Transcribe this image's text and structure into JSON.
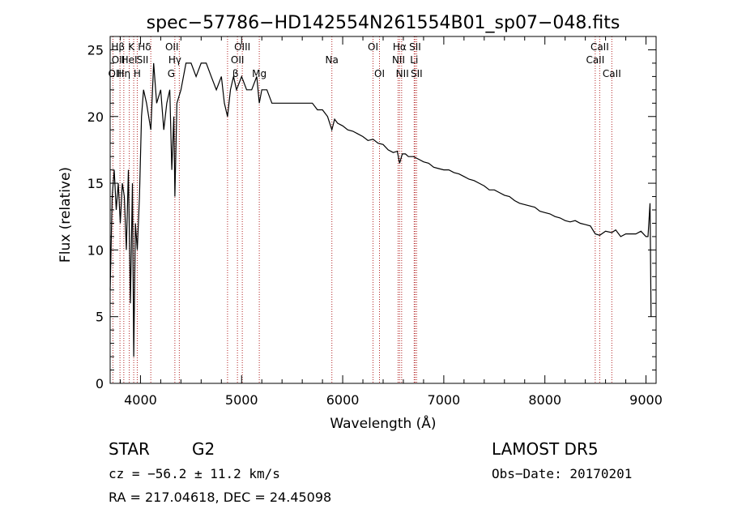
{
  "chart_data": {
    "type": "line",
    "title": "spec−57786−HD142554N261554B01_sp07−048.fits",
    "xlabel": "Wavelength (Å)",
    "ylabel": "Flux (relative)",
    "xlim": [
      3700,
      9100
    ],
    "ylim": [
      0,
      26
    ],
    "xticks": [
      4000,
      5000,
      6000,
      7000,
      8000,
      9000
    ],
    "yticks": [
      0,
      5,
      10,
      15,
      20,
      25
    ],
    "grid": false,
    "series": [
      {
        "color": "#000000",
        "x": [
          3700,
          3720,
          3740,
          3760,
          3780,
          3800,
          3820,
          3840,
          3860,
          3880,
          3900,
          3920,
          3933,
          3950,
          3968,
          3990,
          4010,
          4030,
          4060,
          4102,
          4130,
          4160,
          4200,
          4230,
          4260,
          4290,
          4310,
          4330,
          4340,
          4360,
          4400,
          4450,
          4500,
          4550,
          4600,
          4650,
          4700,
          4750,
          4800,
          4830,
          4861,
          4890,
          4920,
          4950,
          5000,
          5050,
          5100,
          5150,
          5175,
          5200,
          5250,
          5300,
          5350,
          5400,
          5450,
          5500,
          5550,
          5600,
          5650,
          5700,
          5750,
          5800,
          5850,
          5893,
          5920,
          5950,
          6000,
          6050,
          6100,
          6150,
          6200,
          6250,
          6300,
          6350,
          6400,
          6450,
          6500,
          6540,
          6563,
          6590,
          6620,
          6650,
          6700,
          6750,
          6800,
          6850,
          6900,
          6950,
          7000,
          7050,
          7100,
          7150,
          7200,
          7250,
          7300,
          7350,
          7400,
          7450,
          7500,
          7550,
          7600,
          7650,
          7700,
          7750,
          7800,
          7850,
          7900,
          7950,
          8000,
          8050,
          8100,
          8150,
          8200,
          8250,
          8300,
          8350,
          8400,
          8450,
          8498,
          8542,
          8600,
          8662,
          8700,
          8750,
          8800,
          8850,
          8900,
          8950,
          9000,
          9020,
          9040,
          9050
        ],
        "y": [
          7,
          14,
          16,
          13,
          15,
          12,
          15,
          14,
          10,
          16,
          6,
          15,
          2,
          12,
          10,
          14,
          20,
          22,
          21,
          19,
          24,
          21,
          22,
          19,
          21,
          22,
          16,
          20,
          14,
          21,
          22,
          24,
          24,
          23,
          24,
          24,
          23,
          22,
          23,
          21,
          20,
          22,
          23,
          22,
          23,
          22,
          22,
          23,
          21,
          22,
          22,
          21,
          21,
          21,
          21,
          21,
          21,
          21,
          21,
          21,
          20.5,
          20.5,
          20,
          19,
          19.8,
          19.5,
          19.3,
          19,
          18.9,
          18.7,
          18.5,
          18.2,
          18.3,
          18,
          17.9,
          17.5,
          17.3,
          17.4,
          16.5,
          17.2,
          17.2,
          17,
          17,
          16.8,
          16.6,
          16.5,
          16.2,
          16.1,
          16,
          16,
          15.8,
          15.7,
          15.5,
          15.3,
          15.2,
          15,
          14.8,
          14.5,
          14.5,
          14.3,
          14.1,
          14,
          13.7,
          13.5,
          13.4,
          13.3,
          13.2,
          12.9,
          12.8,
          12.7,
          12.5,
          12.4,
          12.2,
          12.1,
          12.2,
          12,
          11.9,
          11.8,
          11.2,
          11.1,
          11.4,
          11.3,
          11.5,
          11,
          11.2,
          11.2,
          11.2,
          11.4,
          11,
          11,
          13.5,
          5
        ]
      }
    ],
    "lines": {
      "positions": [
        3727,
        3797,
        3835,
        3889,
        3933,
        3968,
        4102,
        4340,
        4384,
        4861,
        4959,
        5007,
        5175,
        5893,
        6300,
        6364,
        6548,
        6563,
        6583,
        6707,
        6716,
        6731,
        8498,
        8542,
        8662
      ],
      "labels": [
        {
          "text": "Hβ",
          "x": 3778,
          "row": 0
        },
        {
          "text": "K",
          "x": 3910,
          "row": 0
        },
        {
          "text": "Hδ",
          "x": 4040,
          "row": 0
        },
        {
          "text": "OII",
          "x": 4311,
          "row": 0
        },
        {
          "text": "OIII",
          "x": 5007,
          "row": 0
        },
        {
          "text": "OI",
          "x": 6300,
          "row": 0
        },
        {
          "text": "Hα",
          "x": 6563,
          "row": 0
        },
        {
          "text": "SII",
          "x": 6716,
          "row": 0
        },
        {
          "text": "CaII",
          "x": 8542,
          "row": 0
        },
        {
          "text": "OII",
          "x": 3780,
          "row": 1
        },
        {
          "text": "HeI",
          "x": 3889,
          "row": 1
        },
        {
          "text": "SII",
          "x": 4020,
          "row": 1
        },
        {
          "text": "Hγ",
          "x": 4340,
          "row": 1
        },
        {
          "text": "OII",
          "x": 4959,
          "row": 1
        },
        {
          "text": "Na",
          "x": 5893,
          "row": 1
        },
        {
          "text": "NII",
          "x": 6552,
          "row": 1
        },
        {
          "text": "Li",
          "x": 6707,
          "row": 1
        },
        {
          "text": "CaII",
          "x": 8498,
          "row": 1
        },
        {
          "text": "OIII",
          "x": 3760,
          "row": 2
        },
        {
          "text": "Hη",
          "x": 3835,
          "row": 2
        },
        {
          "text": "H",
          "x": 3968,
          "row": 2
        },
        {
          "text": "G",
          "x": 4304,
          "row": 2
        },
        {
          "text": "β",
          "x": 4940,
          "row": 2
        },
        {
          "text": "Mg",
          "x": 5175,
          "row": 2
        },
        {
          "text": "OI",
          "x": 6364,
          "row": 2
        },
        {
          "text": "NII",
          "x": 6590,
          "row": 2
        },
        {
          "text": "SII",
          "x": 6731,
          "row": 2
        },
        {
          "text": "CaII",
          "x": 8662,
          "row": 2
        }
      ]
    }
  },
  "info": {
    "object_class": "STAR",
    "subclass": "G2",
    "survey": "LAMOST DR5",
    "redshift": "cz = −56.2 ± 11.2 km/s",
    "obs_date": "Obs−Date: 20170201",
    "coords": "RA = 217.04618, DEC =  24.45098"
  }
}
